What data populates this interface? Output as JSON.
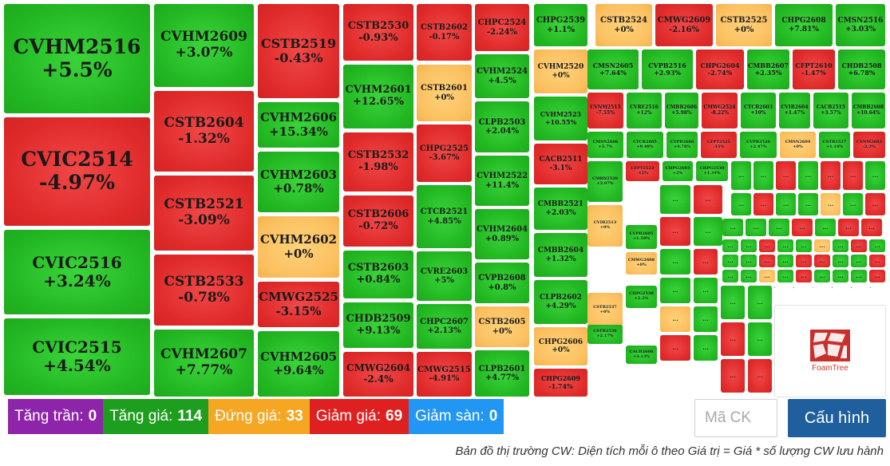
{
  "tiles": [
    {
      "code": "CVHM2516",
      "value": "+5.5%",
      "state": "up"
    },
    {
      "code": "CVIC2514",
      "value": "-4.97%",
      "state": "down"
    },
    {
      "code": "CVIC2516",
      "value": "+3.24%",
      "state": "up"
    },
    {
      "code": "CVIC2515",
      "value": "+4.54%",
      "state": "up"
    },
    {
      "code": "CVHM2609",
      "value": "+3.07%",
      "state": "up"
    },
    {
      "code": "CSTB2604",
      "value": "-1.32%",
      "state": "down"
    },
    {
      "code": "CSTB2521",
      "value": "-3.09%",
      "state": "down"
    },
    {
      "code": "CSTB2533",
      "value": "-0.78%",
      "state": "down"
    },
    {
      "code": "CVHM2607",
      "value": "+7.77%",
      "state": "up"
    },
    {
      "code": "CSTB2519",
      "value": "-0.43%",
      "state": "down"
    },
    {
      "code": "CVHM2606",
      "value": "+15.34%",
      "state": "up"
    },
    {
      "code": "CVHM2603",
      "value": "+0.78%",
      "state": "up"
    },
    {
      "code": "CVHM2602",
      "value": "+0%",
      "state": "flat"
    },
    {
      "code": "CMWG2525",
      "value": "-3.15%",
      "state": "down"
    },
    {
      "code": "CVHM2605",
      "value": "+9.64%",
      "state": "up"
    },
    {
      "code": "CSTB2530",
      "value": "-0.93%",
      "state": "down"
    },
    {
      "code": "CVHM2601",
      "value": "+12.65%",
      "state": "up"
    },
    {
      "code": "CSTB2532",
      "value": "-1.98%",
      "state": "down"
    },
    {
      "code": "CSTB2606",
      "value": "-0.72%",
      "state": "down"
    },
    {
      "code": "CSTB2603",
      "value": "+0.84%",
      "state": "up"
    },
    {
      "code": "CHDB2509",
      "value": "+9.13%",
      "state": "up"
    },
    {
      "code": "CMWG2604",
      "value": "-2.4%",
      "state": "down"
    },
    {
      "code": "CSTB2602",
      "value": "-0.17%",
      "state": "down"
    },
    {
      "code": "CSTB2601",
      "value": "+0%",
      "state": "flat"
    },
    {
      "code": "CHPG2525",
      "value": "-3.67%",
      "state": "down"
    },
    {
      "code": "CTCB2521",
      "value": "+4.85%",
      "state": "up"
    },
    {
      "code": "CVRE2603",
      "value": "+5%",
      "state": "up"
    },
    {
      "code": "CHPC2607",
      "value": "+2.13%",
      "state": "up"
    },
    {
      "code": "CMWG2515",
      "value": "-4.91%",
      "state": "down"
    },
    {
      "code": "CHPC2524",
      "value": "-2.24%",
      "state": "down"
    },
    {
      "code": "CVHM2524",
      "value": "+4.5%",
      "state": "up"
    },
    {
      "code": "CLPB2503",
      "value": "+2.04%",
      "state": "up"
    },
    {
      "code": "CVHM2522",
      "value": "+11.4%",
      "state": "up"
    },
    {
      "code": "CVHM2604",
      "value": "+0.89%",
      "state": "up"
    },
    {
      "code": "CVPB2608",
      "value": "+0.8%",
      "state": "up"
    },
    {
      "code": "CSTB2605",
      "value": "+0%",
      "state": "flat"
    },
    {
      "code": "CLPB2601",
      "value": "+4.77%",
      "state": "up"
    },
    {
      "code": "CHPG2539",
      "value": "+1.1%",
      "state": "up"
    },
    {
      "code": "CVHM2520",
      "value": "+0%",
      "state": "flat"
    },
    {
      "code": "CVHM2523",
      "value": "+10.55%",
      "state": "up"
    },
    {
      "code": "CACB2511",
      "value": "-3.1%",
      "state": "down"
    },
    {
      "code": "CMBB2521",
      "value": "+2.03%",
      "state": "up"
    },
    {
      "code": "CMBB2604",
      "value": "+1.32%",
      "state": "up"
    },
    {
      "code": "CLPB2602",
      "value": "+4.29%",
      "state": "up"
    },
    {
      "code": "CHPG2606",
      "value": "+0%",
      "state": "flat"
    },
    {
      "code": "CHPG2609",
      "value": "-1.74%",
      "state": "down"
    },
    {
      "code": "CSTB2524",
      "value": "+0%",
      "state": "flat"
    },
    {
      "code": "CMWG2609",
      "value": "-2.16%",
      "state": "down"
    },
    {
      "code": "CSTB2525",
      "value": "+0%",
      "state": "flat"
    },
    {
      "code": "CHPG2608",
      "value": "+7.81%",
      "state": "up"
    },
    {
      "code": "CMSN2516",
      "value": "+3.03%",
      "state": "up"
    },
    {
      "code": "CMSN2605",
      "value": "+7.64%",
      "state": "up"
    },
    {
      "code": "CVPB2516",
      "value": "+2.93%",
      "state": "up"
    },
    {
      "code": "CHPG2604",
      "value": "-2.74%",
      "state": "down"
    },
    {
      "code": "CMBB2607",
      "value": "+2.35%",
      "state": "up"
    },
    {
      "code": "CFPT2610",
      "value": "-1.47%",
      "state": "down"
    },
    {
      "code": "CHDB2508",
      "value": "+6.78%",
      "state": "up"
    },
    {
      "code": "CVNM2515",
      "value": "-7.55%",
      "state": "down"
    },
    {
      "code": "CVRE2516",
      "value": "+12%",
      "state": "up"
    },
    {
      "code": "CMBB2606",
      "value": "+5.98%",
      "state": "up"
    },
    {
      "code": "CMWG2524",
      "value": "-8.22%",
      "state": "down"
    },
    {
      "code": "CTCB2603",
      "value": "+10%",
      "state": "up"
    },
    {
      "code": "CVIB2604",
      "value": "+1.47%",
      "state": "up"
    },
    {
      "code": "CACB2515",
      "value": "+3.57%",
      "state": "up"
    },
    {
      "code": "CMBB2608",
      "value": "+10.64%",
      "state": "up"
    },
    {
      "code": "CMSN2606",
      "value": "+5.7%",
      "state": "up"
    },
    {
      "code": "CTCB2605",
      "value": "+9.48%",
      "state": "up"
    },
    {
      "code": "CVPB2606",
      "value": "+4.76%",
      "state": "up"
    },
    {
      "code": "CFPT2525",
      "value": "-15%",
      "state": "down"
    },
    {
      "code": "CVPB2520",
      "value": "+2.47%",
      "state": "up"
    },
    {
      "code": "CMSN2604",
      "value": "+0%",
      "state": "flat"
    },
    {
      "code": "CSTB2527",
      "value": "+1.14%",
      "state": "up"
    },
    {
      "code": "CVNM2603",
      "value": "-2.2%",
      "state": "down"
    },
    {
      "code": "CMBB2520",
      "value": "+3.97%",
      "state": "up"
    },
    {
      "code": "CFPT2523",
      "value": "-12%",
      "state": "down"
    },
    {
      "code": "CHPG2603",
      "value": "+2%",
      "state": "up"
    },
    {
      "code": "CHPG2530",
      "value": "+1.34%",
      "state": "up"
    },
    {
      "code": "CVIB2513",
      "value": "+0%",
      "state": "flat"
    },
    {
      "code": "CVPB2605",
      "value": "+1.59%",
      "state": "up"
    },
    {
      "code": "CMWG2608",
      "value": "+0%",
      "state": "flat"
    },
    {
      "code": "CHPG2538",
      "value": "+2.2%",
      "state": "up"
    },
    {
      "code": "CSTB2537",
      "value": "+0%",
      "state": "flat"
    },
    {
      "code": "CSTB2536",
      "value": "+2.17%",
      "state": "up"
    },
    {
      "code": "CACB2606",
      "value": "+3.13%",
      "state": "up"
    }
  ],
  "more_label": "...",
  "legend": [
    {
      "label": "Tăng trần:",
      "count": "0",
      "color": "#8e24aa"
    },
    {
      "label": "Tăng giá:",
      "count": "114",
      "color": "#1e9e1e"
    },
    {
      "label": "Đứng giá:",
      "count": "33",
      "color": "#f5a623"
    },
    {
      "label": "Giảm giá:",
      "count": "69",
      "color": "#df2020"
    },
    {
      "label": "Giảm sàn:",
      "count": "0",
      "color": "#2196f3"
    }
  ],
  "search": {
    "placeholder": "Mã CK"
  },
  "config_button": "Cấu hình",
  "caption": "Bản đồ thị trường CW: Diện tích mỗi ô theo Giá trị = Giá * số lượng CW lưu hành",
  "logo_text": "FoamTree"
}
